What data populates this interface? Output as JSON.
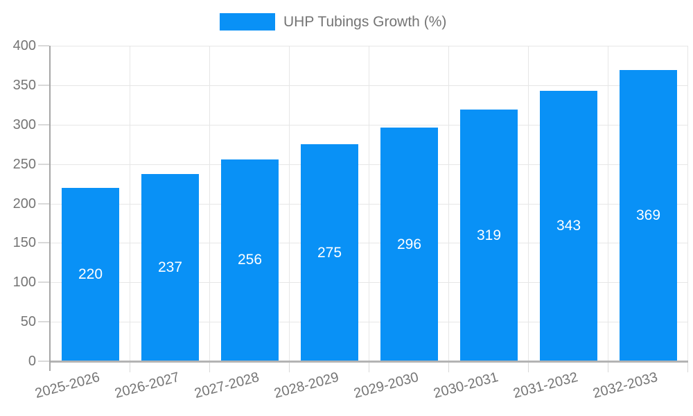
{
  "legend": {
    "label": "UHP Tubings Growth (%)"
  },
  "chart_data": {
    "type": "bar",
    "title": "",
    "series_name": "UHP Tubings Growth (%)",
    "categories": [
      "2025-2026",
      "2026-2027",
      "2027-2028",
      "2028-2029",
      "2029-2030",
      "2030-2031",
      "2031-2032",
      "2032-2033"
    ],
    "values": [
      220,
      237,
      256,
      275,
      296,
      319,
      343,
      369
    ],
    "value_labels": [
      "220",
      "237",
      "256",
      "275",
      "296",
      "319",
      "343",
      "369"
    ],
    "xlabel": "",
    "ylabel": "",
    "ylim": [
      0,
      400
    ],
    "yticks": [
      0,
      50,
      100,
      150,
      200,
      250,
      300,
      350,
      400
    ],
    "grid": true,
    "legend_position": "top"
  },
  "colors": {
    "bar": "#0991F6",
    "bar_label": "#FFFFFF",
    "grid": "#E6E6E6",
    "axis": "#A6A6A6",
    "baseline": "#B3B3B3",
    "tick": "#D9D9D9",
    "text": "#757575"
  }
}
